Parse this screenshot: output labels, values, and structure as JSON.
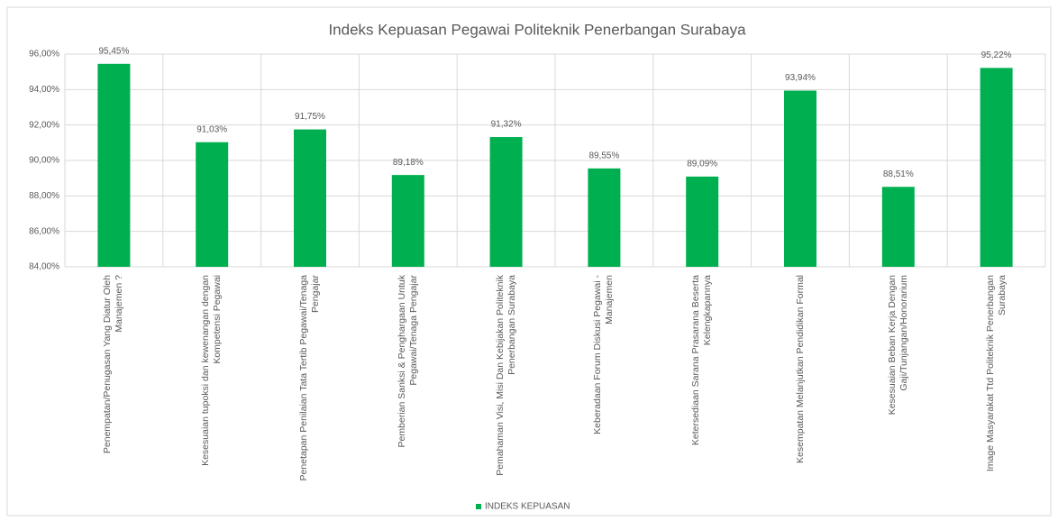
{
  "chart_data": {
    "type": "bar",
    "title": "Indeks Kepuasan Pegawai Politeknik Penerbangan Surabaya",
    "categories": [
      "Penempatan/Penugasan Yang Diatur Oleh Manajemen ?",
      "Kesesuaian tupoksi dan kewenangan dengan Kompetensi Pegawai",
      "Penetapan Penilaian Tata Tertib Pegawai/Tenaga Pengajar",
      "Pemberian Sanksi & Penghargaan Untuk Pegawai/Tenaga Pengajar",
      "Pemahaman Visi, Misi Dan Kebijakan Politeknik Penerbangan Surabaya",
      "Keberadaan Forum Diskusi Pegawai - Manajemen",
      "Ketersediaan Sarana Prasarana Beserta Kelengkapannya",
      "Kesempatan Melanjutkan Pendidikan Formal",
      "Kesesuaian Beban Kerja Dengan Gaji/Tunjangan/Honorarium",
      "Image Masyarakat Ttd Politeknik Penerbangan Surabaya"
    ],
    "series": [
      {
        "name": "INDEKS KEPUASAN",
        "color": "#00b050",
        "values": [
          95.45,
          91.03,
          91.75,
          89.18,
          91.32,
          89.55,
          89.09,
          93.94,
          88.51,
          95.22
        ],
        "value_labels": [
          "95,45%",
          "91,03%",
          "91,75%",
          "89,18%",
          "91,32%",
          "89,55%",
          "89,09%",
          "93,94%",
          "88,51%",
          "95,22%"
        ]
      }
    ],
    "ylim": [
      84,
      96
    ],
    "yticks": [
      {
        "value": 84,
        "label": "84,00%"
      },
      {
        "value": 86,
        "label": "86,00%"
      },
      {
        "value": 88,
        "label": "88,00%"
      },
      {
        "value": 90,
        "label": "90,00%"
      },
      {
        "value": 92,
        "label": "92,00%"
      },
      {
        "value": 94,
        "label": "94,00%"
      },
      {
        "value": 96,
        "label": "96,00%"
      }
    ],
    "grid": true,
    "legend": "bottom"
  }
}
